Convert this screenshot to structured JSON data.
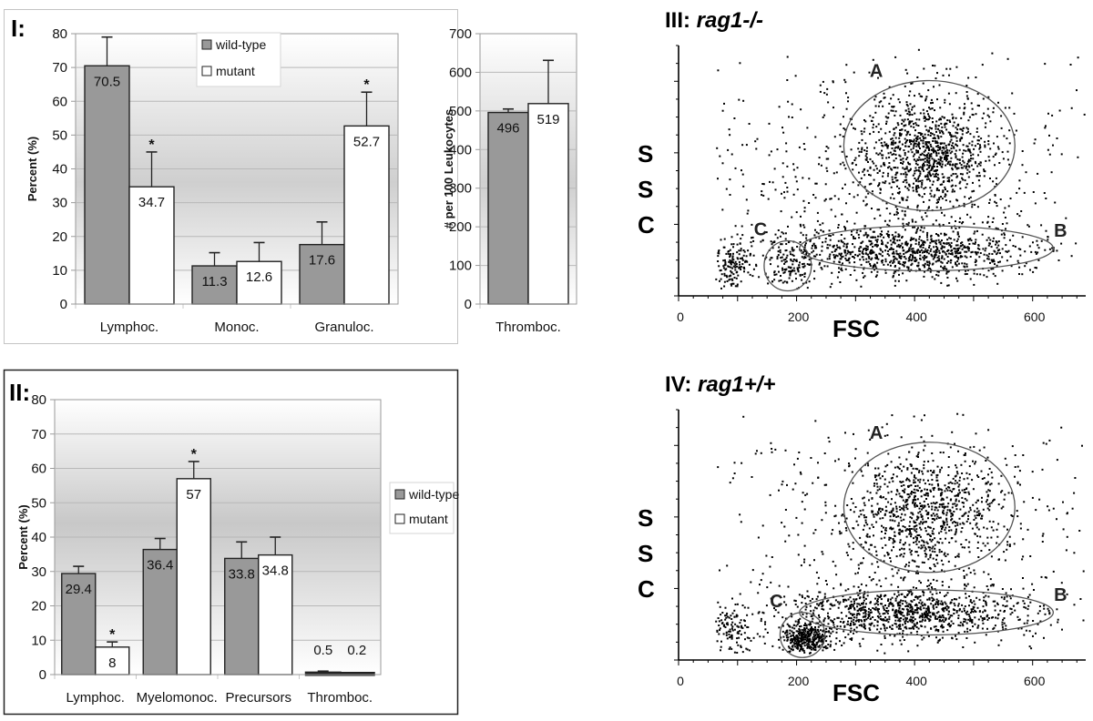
{
  "chart_data": [
    {
      "id": "I",
      "type": "bar",
      "panel_label": "I:",
      "title": "",
      "xlabel": "",
      "ylabel": "Percent (%)",
      "ylim": [
        0,
        80
      ],
      "yticks": [
        0,
        10,
        20,
        30,
        40,
        50,
        60,
        70,
        80
      ],
      "categories": [
        "Lymphoc.",
        "Monoc.",
        "Granuloc."
      ],
      "series": [
        {
          "name": "wild-type",
          "color": "#999999",
          "values": [
            70.5,
            11.3,
            17.6
          ],
          "error_upper": [
            79.0,
            15.2,
            24.3
          ],
          "labels": [
            "70.5",
            "11.3",
            "17.6"
          ],
          "significant": [
            false,
            false,
            false
          ]
        },
        {
          "name": "mutant",
          "color": "#ffffff",
          "values": [
            34.7,
            12.6,
            52.7
          ],
          "error_upper": [
            45.0,
            18.2,
            62.7
          ],
          "labels": [
            "34.7",
            "12.6",
            "52.7"
          ],
          "significant": [
            true,
            false,
            true
          ]
        }
      ],
      "legend": {
        "position": "top-center",
        "entries": [
          "wild-type",
          "mutant"
        ]
      },
      "grid": true,
      "significance_marker": "*"
    },
    {
      "id": "I-thromb",
      "type": "bar",
      "title": "",
      "xlabel": "",
      "ylabel": "# per 100 Leukocytes",
      "ylim": [
        0,
        700
      ],
      "yticks": [
        0,
        100,
        200,
        300,
        400,
        500,
        600,
        700
      ],
      "categories": [
        "Thromboc."
      ],
      "series": [
        {
          "name": "wild-type",
          "color": "#999999",
          "values": [
            496
          ],
          "error_upper": [
            505
          ],
          "labels": [
            "496"
          ],
          "significant": [
            false
          ]
        },
        {
          "name": "mutant",
          "color": "#ffffff",
          "values": [
            519
          ],
          "error_upper": [
            631
          ],
          "labels": [
            "519"
          ],
          "significant": [
            false
          ]
        }
      ],
      "grid": true
    },
    {
      "id": "II",
      "type": "bar",
      "panel_label": "II:",
      "title": "",
      "xlabel": "",
      "ylabel": "Percent (%)",
      "ylim": [
        0,
        80
      ],
      "yticks": [
        0,
        10,
        20,
        30,
        40,
        50,
        60,
        70,
        80
      ],
      "categories": [
        "Lymphoc.",
        "Myelomonoc.",
        "Precursors",
        "Thromboc."
      ],
      "series": [
        {
          "name": "wild-type",
          "color": "#999999",
          "values": [
            29.4,
            36.4,
            33.8,
            0.5
          ],
          "error_upper": [
            31.5,
            39.6,
            38.6,
            1.0
          ],
          "labels": [
            "29.4",
            "36.4",
            "33.8",
            "0.5"
          ],
          "significant": [
            false,
            false,
            false,
            false
          ]
        },
        {
          "name": "mutant",
          "color": "#ffffff",
          "values": [
            8,
            57,
            34.8,
            0.2
          ],
          "error_upper": [
            9.5,
            62.0,
            40.0,
            0.4
          ],
          "labels": [
            "8",
            "57",
            "34.8",
            "0.2"
          ],
          "significant": [
            true,
            true,
            false,
            false
          ]
        }
      ],
      "legend": {
        "position": "right",
        "entries": [
          "wild-type",
          "mutant"
        ]
      },
      "grid": true,
      "significance_marker": "*"
    },
    {
      "id": "III",
      "type": "scatter",
      "title": "III: rag1-/-",
      "title_prefix": "III: ",
      "title_italic": "rag1-/-",
      "xlabel": "FSC",
      "ylabel": "SSC",
      "xlim": [
        0,
        690
      ],
      "xticks": [
        0,
        200,
        400,
        600
      ],
      "gates": [
        {
          "label": "A",
          "cx": 425,
          "cy": 0.6,
          "rx": 145,
          "ry": 0.26
        },
        {
          "label": "B",
          "cx": 420,
          "cy": 0.19,
          "rx": 215,
          "ry": 0.09
        },
        {
          "label": "C",
          "cx": 185,
          "cy": 0.12,
          "rx": 40,
          "ry": 0.1
        }
      ],
      "populations": [
        {
          "cx": 420,
          "cy": 0.58,
          "sx": 55,
          "sy": 0.11,
          "n": 900
        },
        {
          "cx": 380,
          "cy": 0.18,
          "sx": 110,
          "sy": 0.05,
          "n": 900
        },
        {
          "cx": 190,
          "cy": 0.12,
          "sx": 25,
          "sy": 0.05,
          "n": 120
        },
        {
          "cx": 85,
          "cy": 0.13,
          "sx": 20,
          "sy": 0.05,
          "n": 150
        },
        {
          "cx": 370,
          "cy": 0.5,
          "sx": 190,
          "sy": 0.28,
          "n": 650
        }
      ],
      "seed": 17
    },
    {
      "id": "IV",
      "type": "scatter",
      "title": "IV: rag1+/+",
      "title_prefix": "IV: ",
      "title_italic": "rag1+/+",
      "xlabel": "FSC",
      "ylabel": "SSC",
      "xlim": [
        0,
        690
      ],
      "xticks": [
        0,
        200,
        400,
        600
      ],
      "gates": [
        {
          "label": "A",
          "cx": 425,
          "cy": 0.61,
          "rx": 145,
          "ry": 0.26
        },
        {
          "label": "B",
          "cx": 420,
          "cy": 0.19,
          "rx": 215,
          "ry": 0.09
        },
        {
          "label": "C",
          "cx": 210,
          "cy": 0.1,
          "rx": 38,
          "ry": 0.09
        }
      ],
      "populations": [
        {
          "cx": 420,
          "cy": 0.6,
          "sx": 60,
          "sy": 0.12,
          "n": 750
        },
        {
          "cx": 380,
          "cy": 0.19,
          "sx": 110,
          "sy": 0.05,
          "n": 950
        },
        {
          "cx": 215,
          "cy": 0.09,
          "sx": 22,
          "sy": 0.03,
          "n": 350
        },
        {
          "cx": 85,
          "cy": 0.12,
          "sx": 20,
          "sy": 0.05,
          "n": 130
        },
        {
          "cx": 370,
          "cy": 0.5,
          "sx": 190,
          "sy": 0.28,
          "n": 600
        }
      ],
      "seed": 29
    }
  ],
  "labels": {
    "panel_I": "I:",
    "panel_II": "II:",
    "legend_wild": "wild-type",
    "legend_mutant": "mutant",
    "ssc_s1": "S",
    "ssc_s2": "S",
    "ssc_c": "C",
    "fsc": "FSC",
    "star": "*"
  }
}
